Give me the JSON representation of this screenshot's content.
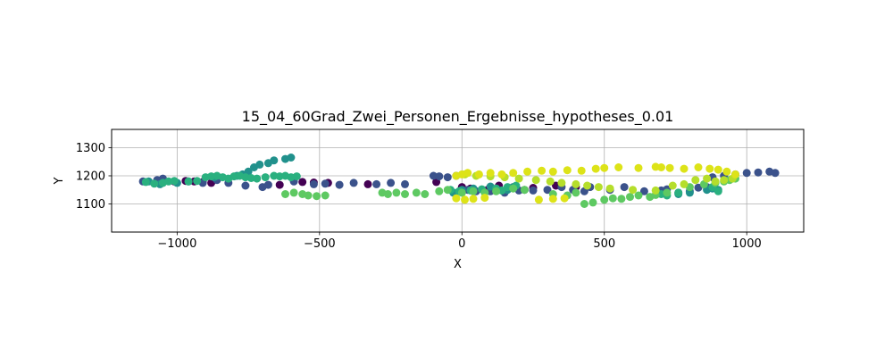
{
  "chart_data": {
    "type": "scatter",
    "title": "15_04_60Grad_Zwei_Personen_Ergebnisse_hypotheses_0.01",
    "xlabel": "X",
    "ylabel": "Y",
    "xlim": [
      -1230,
      1200
    ],
    "ylim": [
      1000,
      1365
    ],
    "xticks": [
      -1000,
      -500,
      0,
      500,
      1000
    ],
    "xtick_labels": [
      "−1000",
      "−500",
      "0",
      "500",
      "1000"
    ],
    "yticks": [
      1100,
      1200,
      1300
    ],
    "ytick_labels": [
      "1100",
      "1200",
      "1300"
    ],
    "grid": true,
    "colormap": "viridis",
    "colors": [
      "#440154",
      "#3b528b",
      "#21918c",
      "#2ab07f",
      "#5ec962",
      "#b5de2b",
      "#dde318"
    ],
    "series": [
      {
        "color": "#440154",
        "points": [
          [
            -1010,
            1180
          ],
          [
            -970,
            1182
          ],
          [
            -940,
            1180
          ],
          [
            -910,
            1178
          ],
          [
            -880,
            1175
          ],
          [
            -640,
            1168
          ],
          [
            -560,
            1178
          ],
          [
            -520,
            1176
          ],
          [
            -470,
            1175
          ],
          [
            -330,
            1170
          ],
          [
            -90,
            1178
          ],
          [
            0,
            1160
          ],
          [
            30,
            1155
          ],
          [
            90,
            1150
          ],
          [
            130,
            1165
          ],
          [
            180,
            1160
          ],
          [
            250,
            1157
          ],
          [
            330,
            1165
          ],
          [
            400,
            1160
          ]
        ]
      },
      {
        "color": "#3b528b",
        "points": [
          [
            -1120,
            1180
          ],
          [
            -1070,
            1185
          ],
          [
            -1050,
            1190
          ],
          [
            -960,
            1180
          ],
          [
            -910,
            1175
          ],
          [
            -860,
            1185
          ],
          [
            -820,
            1175
          ],
          [
            -760,
            1165
          ],
          [
            -700,
            1160
          ],
          [
            -680,
            1168
          ],
          [
            -590,
            1180
          ],
          [
            -520,
            1170
          ],
          [
            -480,
            1172
          ],
          [
            -430,
            1168
          ],
          [
            -380,
            1175
          ],
          [
            -300,
            1170
          ],
          [
            -250,
            1175
          ],
          [
            -200,
            1170
          ],
          [
            -100,
            1200
          ],
          [
            -80,
            1198
          ],
          [
            -50,
            1195
          ],
          [
            -20,
            1200
          ],
          [
            20,
            1150
          ],
          [
            50,
            1145
          ],
          [
            100,
            1145
          ],
          [
            150,
            1140
          ],
          [
            200,
            1148
          ],
          [
            220,
            1150
          ],
          [
            250,
            1148
          ],
          [
            300,
            1150
          ],
          [
            350,
            1160
          ],
          [
            390,
            1150
          ],
          [
            430,
            1145
          ],
          [
            450,
            1160
          ],
          [
            520,
            1150
          ],
          [
            570,
            1160
          ],
          [
            640,
            1145
          ],
          [
            700,
            1148
          ],
          [
            720,
            1152
          ],
          [
            760,
            1140
          ],
          [
            800,
            1145
          ],
          [
            830,
            1158
          ],
          [
            860,
            1160
          ],
          [
            880,
            1195
          ],
          [
            920,
            1200
          ],
          [
            960,
            1205
          ],
          [
            1000,
            1210
          ],
          [
            1040,
            1212
          ],
          [
            1080,
            1215
          ],
          [
            1100,
            1210
          ]
        ]
      },
      {
        "color": "#21918c",
        "points": [
          [
            -1100,
            1180
          ],
          [
            -1060,
            1170
          ],
          [
            -1000,
            1175
          ],
          [
            -870,
            1195
          ],
          [
            -790,
            1200
          ],
          [
            -770,
            1205
          ],
          [
            -750,
            1215
          ],
          [
            -730,
            1230
          ],
          [
            -710,
            1240
          ],
          [
            -680,
            1245
          ],
          [
            -660,
            1255
          ],
          [
            -620,
            1260
          ],
          [
            -600,
            1265
          ],
          [
            -30,
            1140
          ],
          [
            0,
            1150
          ],
          [
            40,
            1155
          ],
          [
            100,
            1162
          ],
          [
            160,
            1150
          ],
          [
            180,
            1160
          ],
          [
            760,
            1135
          ],
          [
            800,
            1140
          ],
          [
            860,
            1150
          ],
          [
            880,
            1155
          ],
          [
            900,
            1150
          ]
        ]
      },
      {
        "color": "#2ab07f",
        "points": [
          [
            -1110,
            1178
          ],
          [
            -1080,
            1172
          ],
          [
            -1050,
            1175
          ],
          [
            -1030,
            1180
          ],
          [
            -1010,
            1182
          ],
          [
            -960,
            1180
          ],
          [
            -930,
            1182
          ],
          [
            -900,
            1195
          ],
          [
            -880,
            1198
          ],
          [
            -860,
            1200
          ],
          [
            -840,
            1195
          ],
          [
            -820,
            1190
          ],
          [
            -800,
            1198
          ],
          [
            -780,
            1200
          ],
          [
            -760,
            1195
          ],
          [
            -740,
            1192
          ],
          [
            -720,
            1190
          ],
          [
            -690,
            1195
          ],
          [
            -660,
            1200
          ],
          [
            -640,
            1198
          ],
          [
            -620,
            1200
          ],
          [
            -600,
            1195
          ],
          [
            -580,
            1198
          ],
          [
            -40,
            1150
          ],
          [
            -10,
            1145
          ],
          [
            30,
            1148
          ],
          [
            70,
            1152
          ],
          [
            120,
            1155
          ],
          [
            140,
            1148
          ],
          [
            160,
            1160
          ],
          [
            190,
            1165
          ],
          [
            700,
            1135
          ],
          [
            720,
            1130
          ],
          [
            760,
            1140
          ],
          [
            880,
            1160
          ],
          [
            900,
            1145
          ]
        ]
      },
      {
        "color": "#5ec962",
        "points": [
          [
            -620,
            1135
          ],
          [
            -590,
            1140
          ],
          [
            -560,
            1135
          ],
          [
            -540,
            1130
          ],
          [
            -510,
            1128
          ],
          [
            -480,
            1130
          ],
          [
            -280,
            1140
          ],
          [
            -260,
            1135
          ],
          [
            -230,
            1140
          ],
          [
            -200,
            1135
          ],
          [
            -160,
            1140
          ],
          [
            -130,
            1135
          ],
          [
            -80,
            1145
          ],
          [
            -50,
            1150
          ],
          [
            0,
            1140
          ],
          [
            40,
            1145
          ],
          [
            80,
            1140
          ],
          [
            120,
            1145
          ],
          [
            180,
            1155
          ],
          [
            220,
            1150
          ],
          [
            320,
            1135
          ],
          [
            370,
            1130
          ],
          [
            400,
            1140
          ],
          [
            430,
            1100
          ],
          [
            460,
            1105
          ],
          [
            500,
            1115
          ],
          [
            530,
            1120
          ],
          [
            560,
            1118
          ],
          [
            590,
            1125
          ],
          [
            620,
            1130
          ],
          [
            660,
            1125
          ],
          [
            680,
            1132
          ],
          [
            720,
            1140
          ],
          [
            800,
            1160
          ],
          [
            850,
            1170
          ],
          [
            890,
            1175
          ],
          [
            920,
            1180
          ],
          [
            940,
            1185
          ],
          [
            960,
            1190
          ]
        ]
      },
      {
        "color": "#b5de2b",
        "points": [
          [
            10,
            1205
          ],
          [
            50,
            1200
          ],
          [
            100,
            1198
          ],
          [
            150,
            1195
          ],
          [
            200,
            1190
          ],
          [
            260,
            1185
          ],
          [
            310,
            1180
          ],
          [
            350,
            1175
          ],
          [
            400,
            1170
          ],
          [
            440,
            1165
          ],
          [
            480,
            1160
          ],
          [
            520,
            1155
          ],
          [
            600,
            1150
          ],
          [
            680,
            1148
          ],
          [
            740,
            1165
          ],
          [
            780,
            1170
          ],
          [
            820,
            1185
          ],
          [
            860,
            1190
          ],
          [
            890,
            1180
          ],
          [
            920,
            1185
          ],
          [
            950,
            1190
          ]
        ]
      },
      {
        "color": "#dde318",
        "points": [
          [
            -20,
            1200
          ],
          [
            0,
            1205
          ],
          [
            20,
            1210
          ],
          [
            60,
            1205
          ],
          [
            100,
            1210
          ],
          [
            140,
            1205
          ],
          [
            180,
            1210
          ],
          [
            230,
            1215
          ],
          [
            280,
            1218
          ],
          [
            320,
            1215
          ],
          [
            370,
            1220
          ],
          [
            420,
            1218
          ],
          [
            470,
            1225
          ],
          [
            500,
            1228
          ],
          [
            550,
            1230
          ],
          [
            620,
            1228
          ],
          [
            680,
            1232
          ],
          [
            700,
            1230
          ],
          [
            730,
            1228
          ],
          [
            780,
            1225
          ],
          [
            830,
            1230
          ],
          [
            870,
            1225
          ],
          [
            900,
            1222
          ],
          [
            930,
            1215
          ],
          [
            960,
            1205
          ],
          [
            -20,
            1120
          ],
          [
            10,
            1115
          ],
          [
            40,
            1118
          ],
          [
            80,
            1122
          ],
          [
            270,
            1115
          ],
          [
            320,
            1118
          ],
          [
            360,
            1120
          ]
        ]
      }
    ]
  }
}
